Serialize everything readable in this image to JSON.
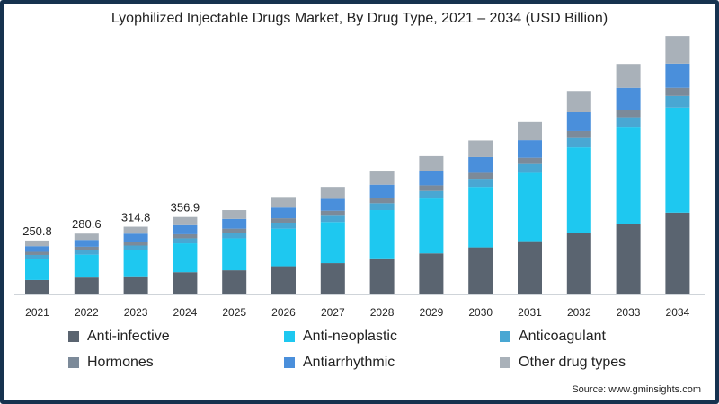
{
  "chart_data": {
    "type": "bar",
    "stacked": true,
    "title": "Lyophilized Injectable Drugs Market, By Drug Type, 2021 – 2034 (USD Billion)",
    "categories": [
      "2021",
      "2022",
      "2023",
      "2024",
      "2025",
      "2026",
      "2027",
      "2028",
      "2029",
      "2030",
      "2031",
      "2032",
      "2033",
      "2034"
    ],
    "series": [
      {
        "name": "Anti-infective",
        "color": "#5a6470",
        "values": [
          46,
          54,
          58,
          71,
          77,
          90,
          100,
          115,
          131,
          150,
          170,
          196,
          224,
          261
        ]
      },
      {
        "name": "Anti-neoplastic",
        "color": "#1ec8f0",
        "values": [
          66,
          73,
          83,
          92,
          102,
          120,
          131,
          154,
          175,
          193,
          218,
          273,
          308,
          335
        ]
      },
      {
        "name": "Anticoagulant",
        "color": "#49a7d3",
        "values": [
          14,
          14,
          15,
          16,
          18,
          19,
          20,
          22,
          24,
          26,
          28,
          30,
          33,
          37
        ]
      },
      {
        "name": "Hormones",
        "color": "#7c8a99",
        "values": [
          10,
          11,
          12,
          13,
          13,
          14,
          16,
          17,
          18,
          19,
          20,
          22,
          24,
          26
        ]
      },
      {
        "name": "Antiarrhythmic",
        "color": "#4a8fdb",
        "values": [
          18,
          22,
          26,
          29,
          31,
          34,
          38,
          42,
          45,
          50,
          56,
          60,
          70,
          77
        ]
      },
      {
        "name": "Other drug types",
        "color": "#a9b1b9",
        "values": [
          18,
          20,
          22,
          26,
          28,
          34,
          38,
          42,
          48,
          53,
          58,
          68,
          76,
          88
        ]
      }
    ],
    "data_labels": [
      "250.8",
      "280.6",
      "314.8",
      "356.9"
    ],
    "ylim": [
      0,
      830
    ],
    "grid": false,
    "legend_position": "bottom"
  },
  "source": "Source: www.gminsights.com"
}
